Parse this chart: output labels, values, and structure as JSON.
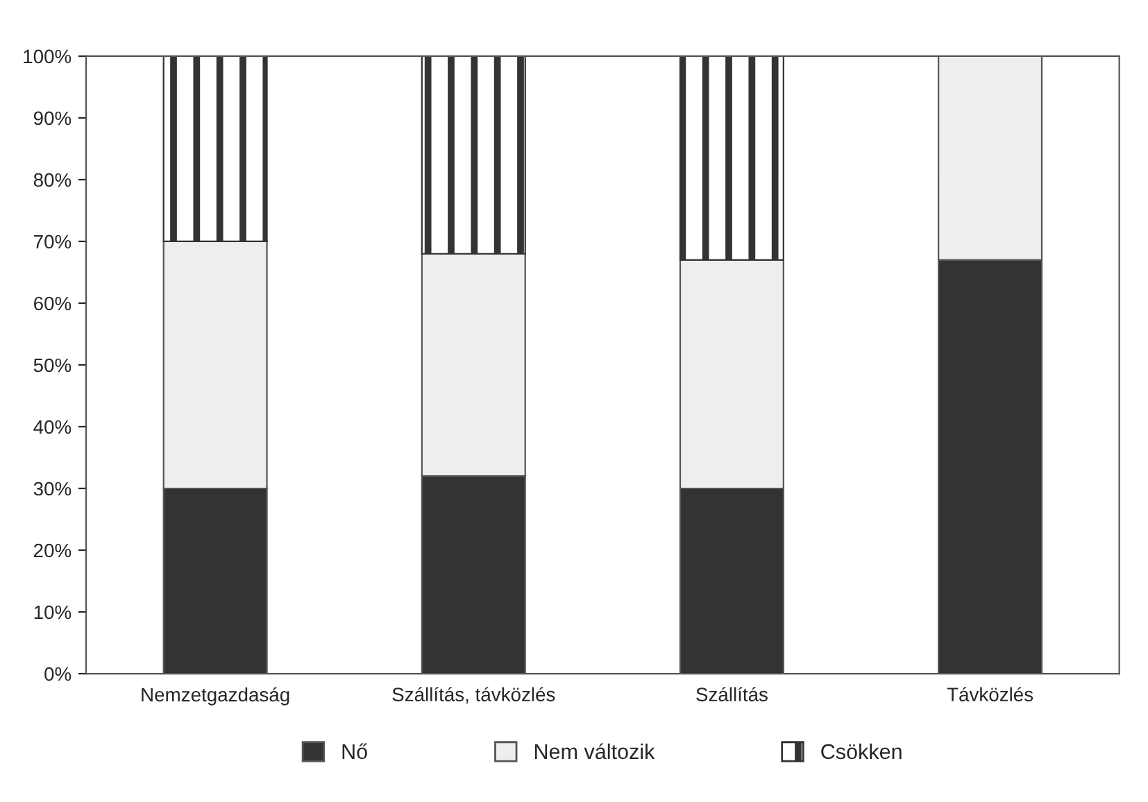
{
  "chart_data": {
    "type": "bar",
    "stacked": true,
    "categories": [
      "Nemzetgazdaság",
      "Szállítás, távközlés",
      "Szállítás",
      "Távközlés"
    ],
    "series": [
      {
        "name": "Nő",
        "color": "#333333",
        "values": [
          30,
          32,
          30,
          67
        ]
      },
      {
        "name": "Nem változik",
        "color": "#eeeeee",
        "values": [
          40,
          36,
          37,
          33
        ]
      },
      {
        "name": "Csökken",
        "color": "#333333",
        "values": [
          30,
          32,
          33,
          0
        ]
      }
    ],
    "ylim": [
      0,
      100
    ],
    "yticks": [
      {
        "value": 0,
        "label": "0%"
      },
      {
        "value": 10,
        "label": "10%"
      },
      {
        "value": 20,
        "label": "20%"
      },
      {
        "value": 30,
        "label": "30%"
      },
      {
        "value": 40,
        "label": "40%"
      },
      {
        "value": 50,
        "label": "50%"
      },
      {
        "value": 60,
        "label": "60%"
      },
      {
        "value": 70,
        "label": "70%"
      },
      {
        "value": 80,
        "label": "80%"
      },
      {
        "value": 90,
        "label": "90%"
      },
      {
        "value": 100,
        "label": "100%"
      }
    ],
    "grid": false,
    "legend": "bottom"
  }
}
